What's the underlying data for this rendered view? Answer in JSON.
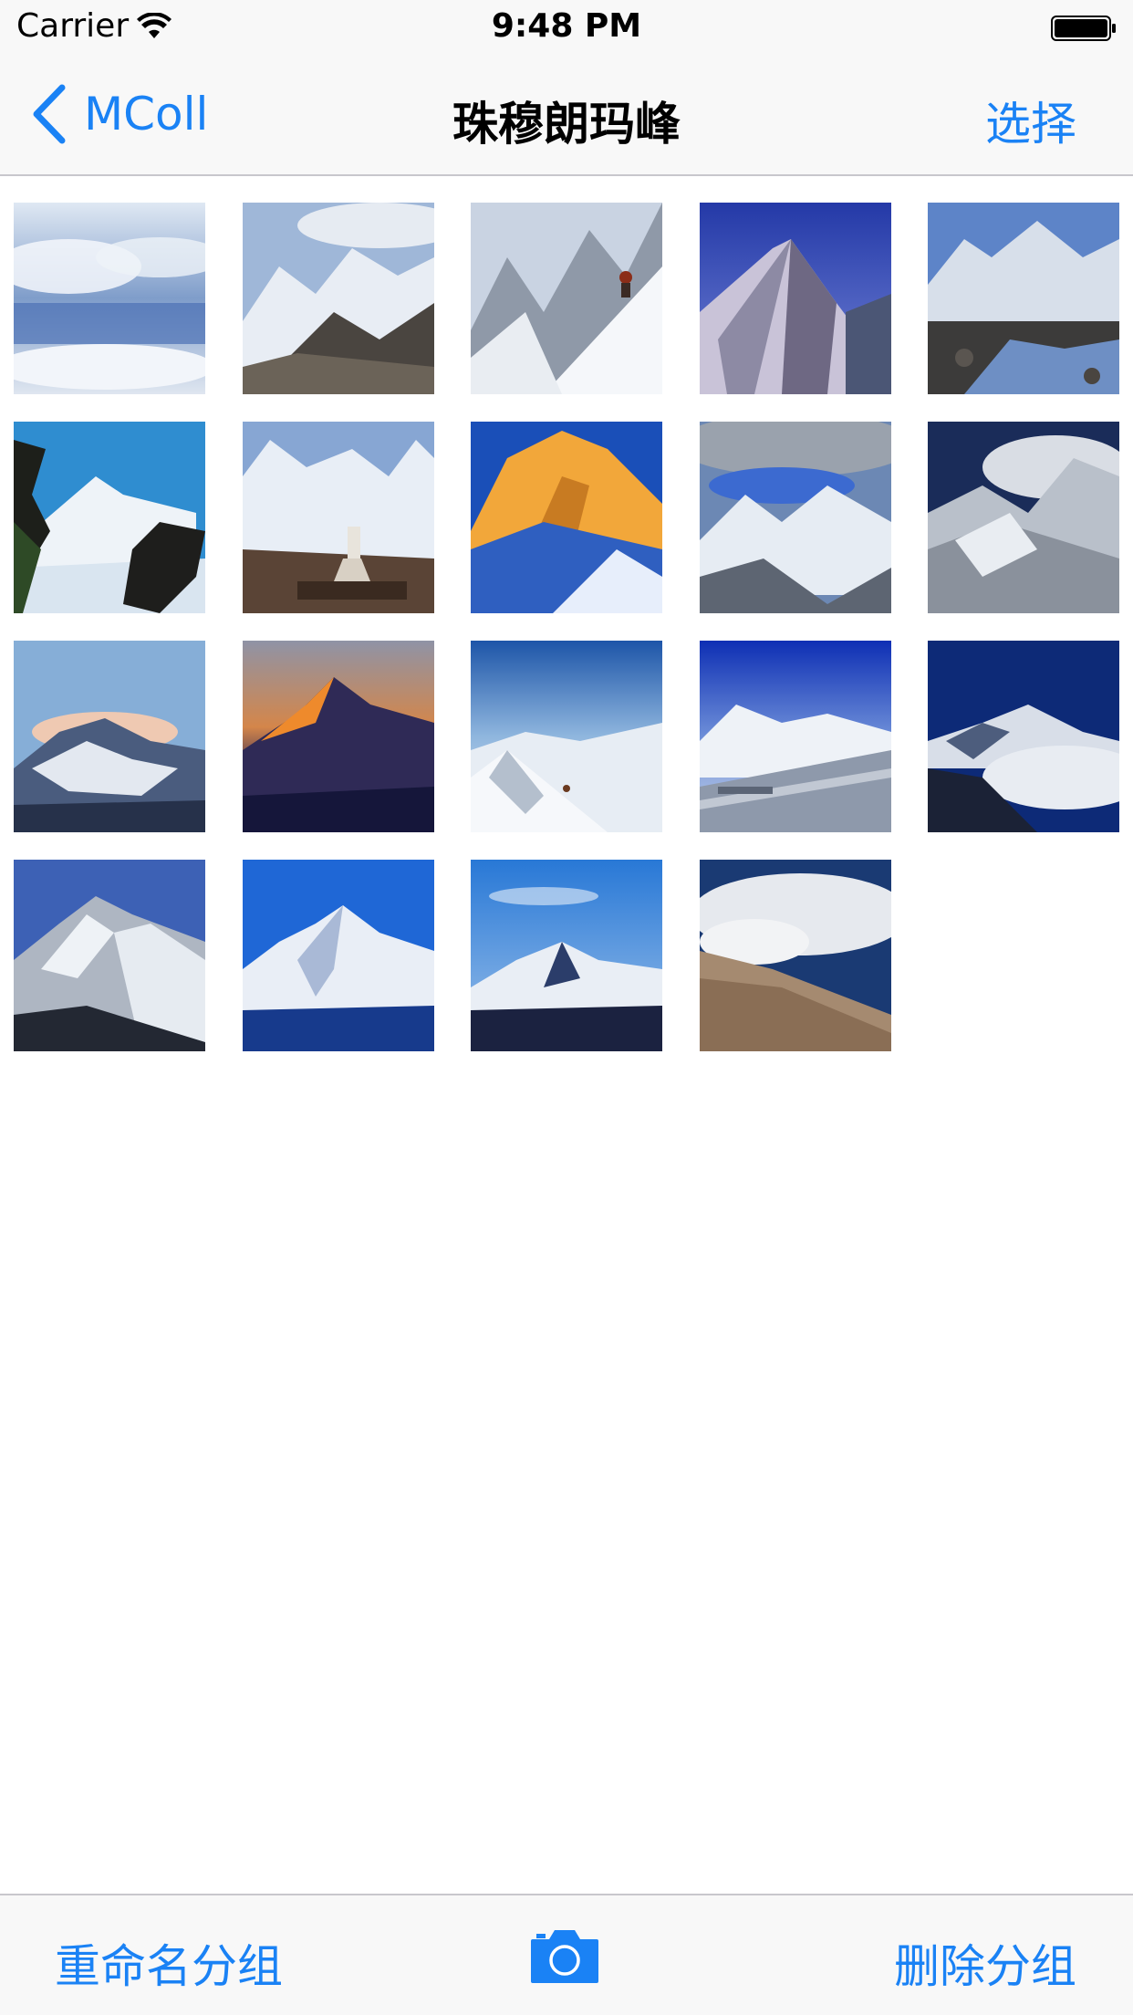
{
  "status_bar": {
    "carrier": "Carrier",
    "time": "9:48 PM"
  },
  "nav": {
    "back_label": "MColl",
    "title": "珠穆朗玛峰",
    "select_label": "选择"
  },
  "toolbar": {
    "rename_label": "重命名分组",
    "delete_label": "删除分组"
  },
  "theme": {
    "accent": "#1a82f5",
    "bar_background": "#f8f8f8"
  },
  "photos": [
    {
      "name": "photo-1",
      "scene": "cloud-sea"
    },
    {
      "name": "photo-2",
      "scene": "snow-ridge-rock"
    },
    {
      "name": "photo-3",
      "scene": "climber-slope"
    },
    {
      "name": "photo-4",
      "scene": "peak-dark-sky"
    },
    {
      "name": "photo-5",
      "scene": "river-valley"
    },
    {
      "name": "photo-6",
      "scene": "tree-silhouette"
    },
    {
      "name": "photo-7",
      "scene": "stupa"
    },
    {
      "name": "photo-8",
      "scene": "golden-peak"
    },
    {
      "name": "photo-9",
      "scene": "cloudy-peaks"
    },
    {
      "name": "photo-10",
      "scene": "dark-clouds-peak"
    },
    {
      "name": "photo-11",
      "scene": "pink-dawn"
    },
    {
      "name": "photo-12",
      "scene": "sunset-peak"
    },
    {
      "name": "photo-13",
      "scene": "snow-field"
    },
    {
      "name": "photo-14",
      "scene": "plane-wing"
    },
    {
      "name": "photo-15",
      "scene": "night-peak-clouds"
    },
    {
      "name": "photo-16",
      "scene": "north-face"
    },
    {
      "name": "photo-17",
      "scene": "blue-sky-range"
    },
    {
      "name": "photo-18",
      "scene": "distant-peak"
    },
    {
      "name": "photo-19",
      "scene": "clouds-hillside"
    }
  ]
}
